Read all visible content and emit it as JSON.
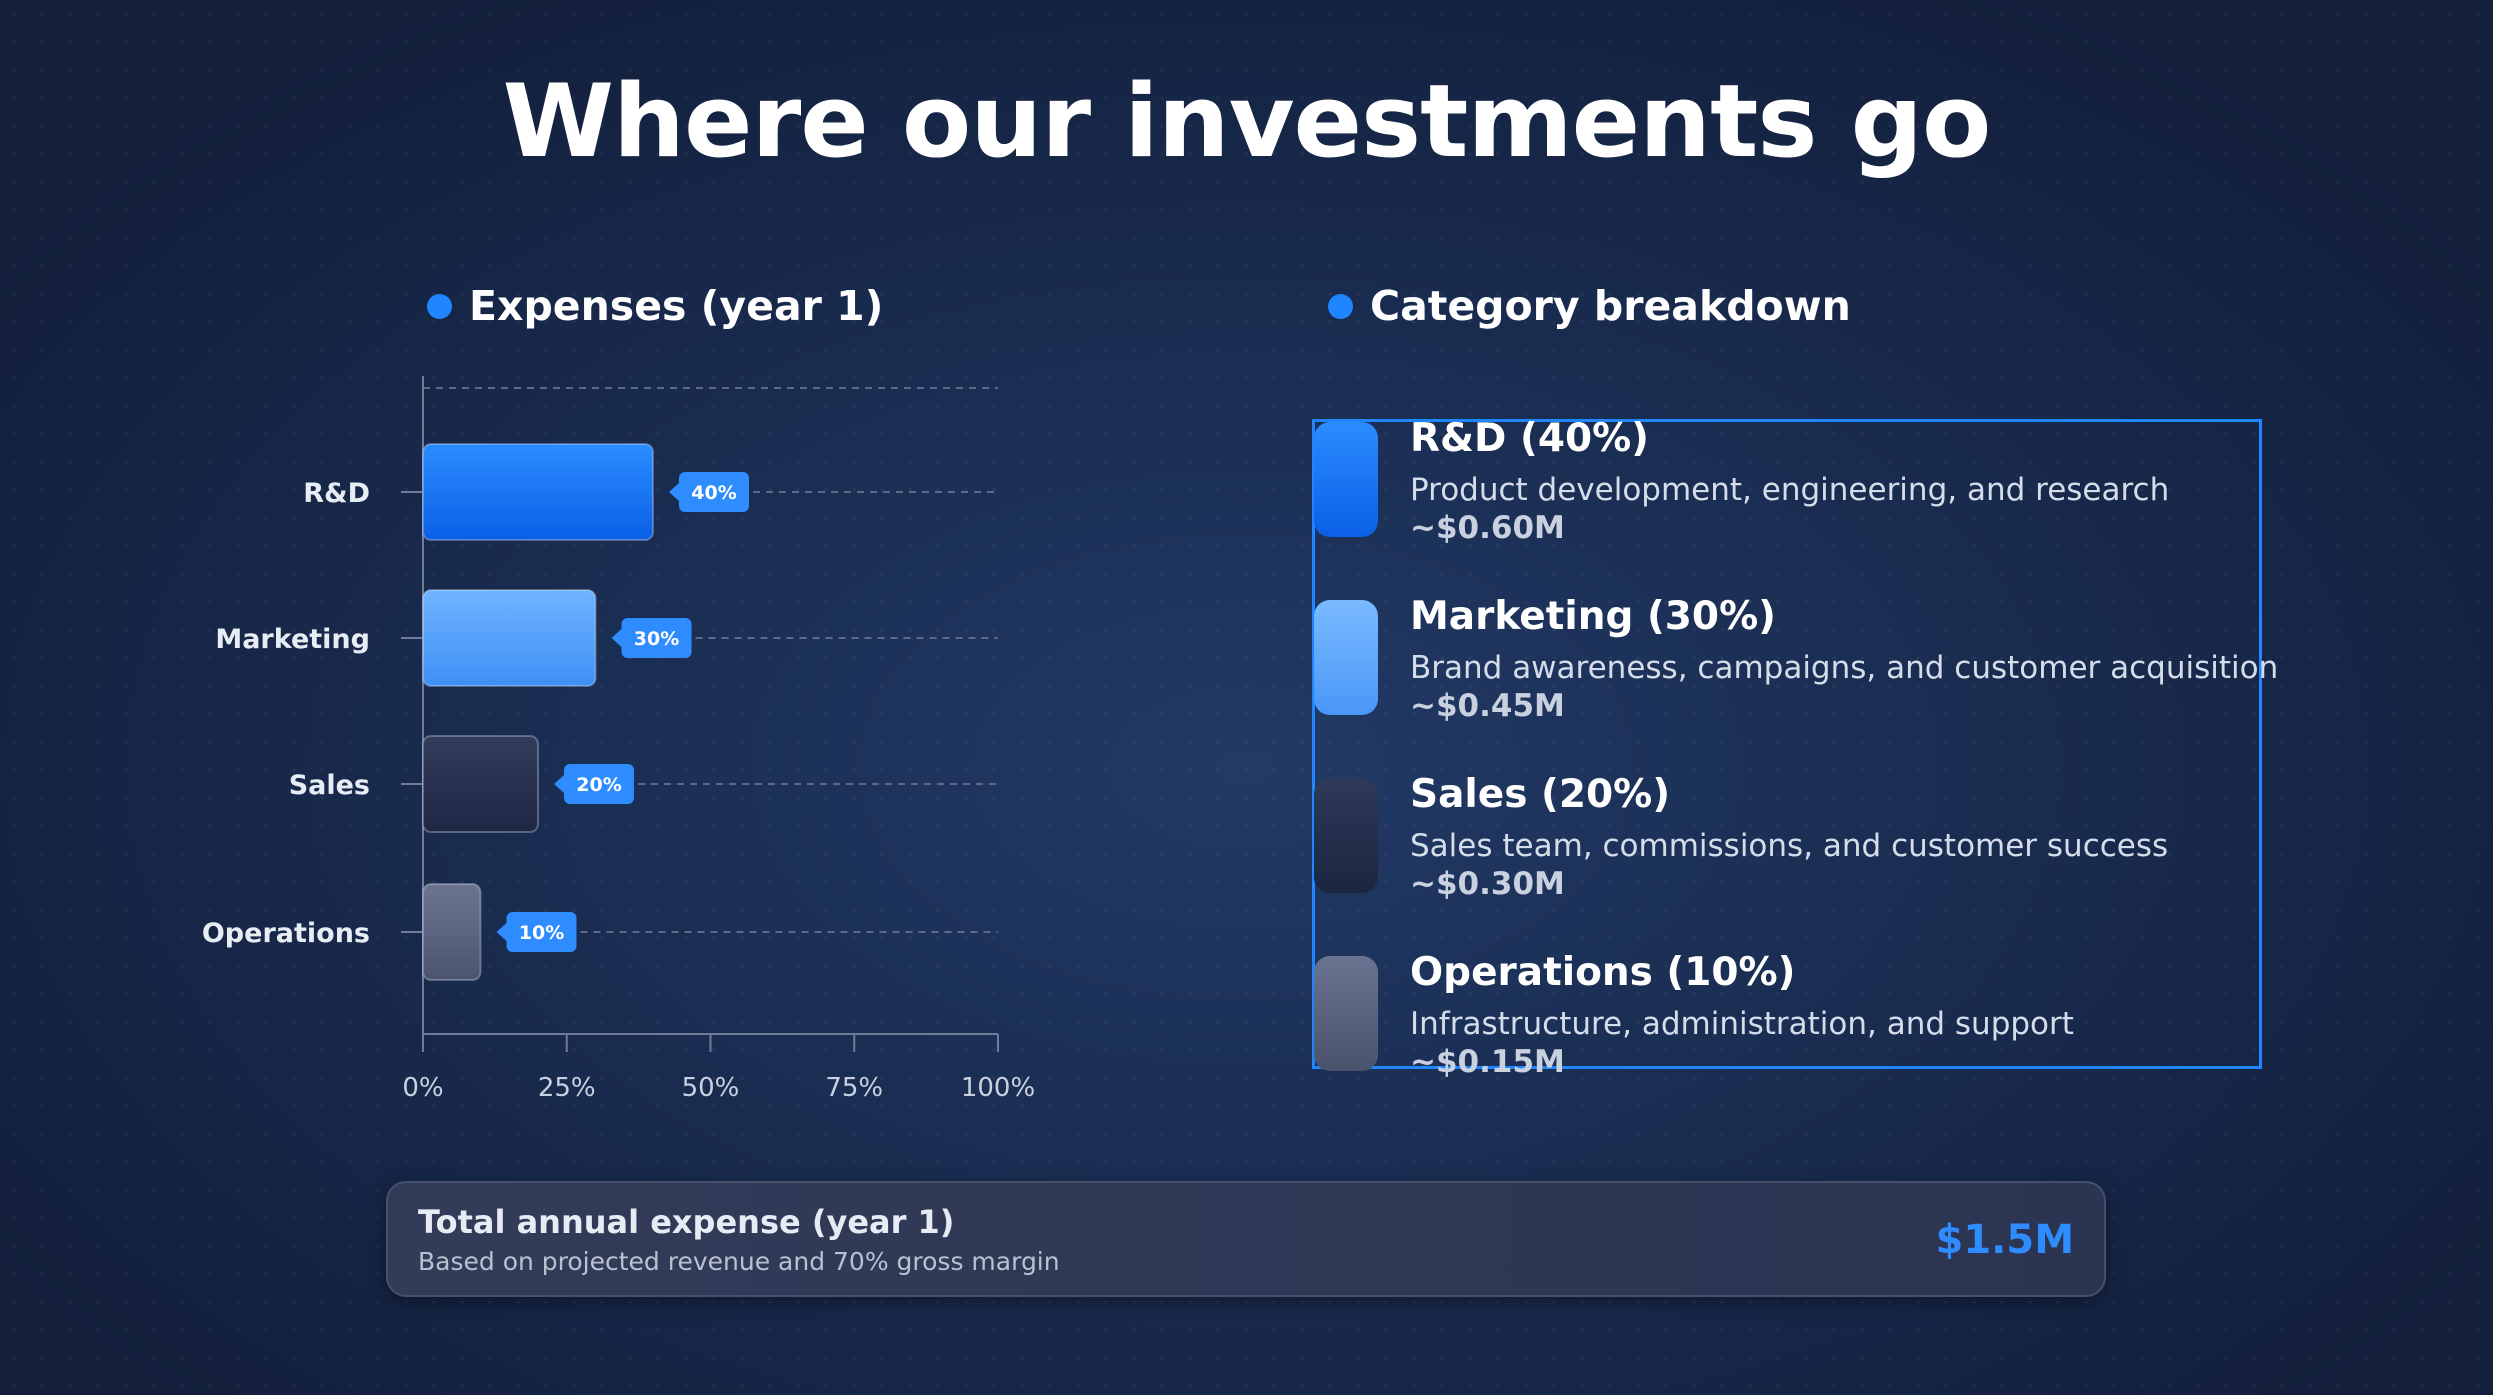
{
  "title": "Where our investments go",
  "colors": {
    "accent": "#1f86ff",
    "rd": "#1a73f0",
    "marketing": "#5aa6ff",
    "sales": "#2a3351",
    "operations": "#5b6480",
    "total_value": "#2f8cff"
  },
  "expenses_heading": "Expenses (year 1)",
  "breakdown_heading": "Category breakdown",
  "chart_data": {
    "type": "bar",
    "orientation": "horizontal",
    "title": "Expenses (year 1)",
    "categories": [
      "R&D",
      "Marketing",
      "Sales",
      "Operations"
    ],
    "values": [
      40,
      30,
      20,
      10
    ],
    "data_labels": [
      "40%",
      "30%",
      "20%",
      "10%"
    ],
    "xlim": [
      0,
      100
    ],
    "xticks": [
      0,
      25,
      50,
      75,
      100
    ],
    "xtick_labels": [
      "0%",
      "25%",
      "50%",
      "75%",
      "100%"
    ],
    "xlabel": "",
    "ylabel": "",
    "grid": "dashed horizontal lines at each category"
  },
  "breakdown": [
    {
      "title": "R&D (40%)",
      "desc": "Product development, engineering, and research",
      "amount": "~$0.60M",
      "color": "#1a73f0"
    },
    {
      "title": "Marketing (30%)",
      "desc": "Brand awareness, campaigns, and customer acquisition",
      "amount": "~$0.45M",
      "color": "#5aa6ff"
    },
    {
      "title": "Sales (20%)",
      "desc": "Sales team, commissions, and customer success",
      "amount": "~$0.30M",
      "color": "#2a3351"
    },
    {
      "title": "Operations (10%)",
      "desc": "Infrastructure, administration, and support",
      "amount": "~$0.15M",
      "color": "#5b6480"
    }
  ],
  "total": {
    "label": "Total annual expense (year 1)",
    "sublabel": "Based on projected revenue and 70% gross margin",
    "value": "$1.5M"
  }
}
